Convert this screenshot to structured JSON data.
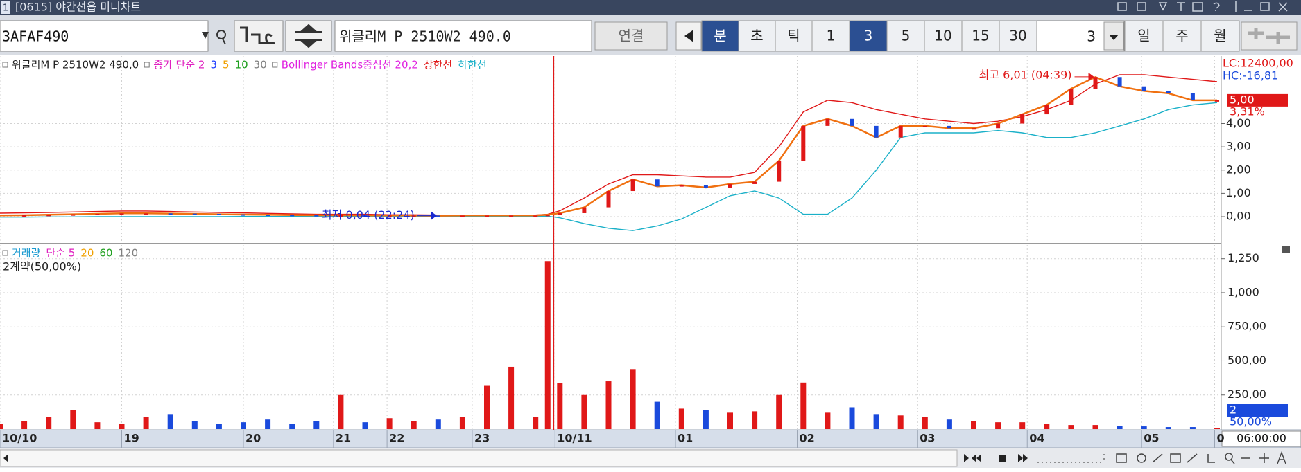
{
  "window": {
    "number": "1",
    "title": "[0615] 야간선옵 미니차트"
  },
  "toolbar": {
    "code": "3AFAF490",
    "name": "위클리M P 2510W2 490.0",
    "connect": "연결",
    "units": [
      "분",
      "초",
      "틱"
    ],
    "unit_selected": 0,
    "intervals": [
      "1",
      "3",
      "5",
      "10",
      "15",
      "30"
    ],
    "interval_selected": 1,
    "count": "3",
    "periods": [
      "일",
      "주",
      "월"
    ]
  },
  "chart_data": [
    {
      "type": "line",
      "x": [
        0,
        2,
        4,
        6,
        8,
        10,
        12,
        14,
        16,
        18,
        20,
        22,
        24,
        26,
        28,
        30,
        32,
        34,
        36,
        38,
        40,
        42,
        44,
        45,
        46,
        48,
        50,
        52,
        54,
        56,
        58,
        60,
        62,
        64,
        66,
        68,
        70,
        72,
        74,
        76,
        78,
        80,
        82,
        84,
        86,
        88,
        90,
        92,
        94,
        96,
        98,
        100
      ],
      "xlim": [
        0,
        100
      ],
      "ylim": [
        -1.1,
        6.9
      ],
      "yticks": [
        {
          "value": 0,
          "label": "0,00"
        },
        {
          "value": 1,
          "label": "1,00"
        },
        {
          "value": 2,
          "label": "2,00"
        },
        {
          "value": 3,
          "label": "3,00"
        },
        {
          "value": 4,
          "label": "4,00"
        }
      ],
      "grid": true,
      "crosshair_x": 45.5,
      "series": [
        {
          "name": "위클리M P 2510W2 490,0",
          "color": "#f07010",
          "values": [
            0.05,
            0.06,
            0.08,
            0.1,
            0.12,
            0.14,
            0.14,
            0.13,
            0.12,
            0.1,
            0.09,
            0.08,
            0.07,
            0.06,
            0.06,
            0.05,
            0.05,
            0.05,
            0.04,
            0.05,
            0.05,
            0.05,
            0.05,
            0.08,
            0.15,
            0.4,
            1.1,
            1.6,
            1.3,
            1.35,
            1.25,
            1.4,
            1.5,
            2.4,
            3.9,
            4.2,
            3.9,
            3.4,
            3.9,
            3.9,
            3.8,
            3.8,
            4.0,
            4.4,
            4.8,
            5.5,
            6.0,
            5.6,
            5.4,
            5.3,
            5.0,
            5.0
          ]
        },
        {
          "name": "상한선",
          "color": "#e01818",
          "values": [
            0.15,
            0.16,
            0.18,
            0.2,
            0.22,
            0.24,
            0.24,
            0.22,
            0.2,
            0.18,
            0.16,
            0.14,
            0.12,
            0.1,
            0.1,
            0.1,
            0.08,
            0.08,
            0.07,
            0.07,
            0.07,
            0.07,
            0.07,
            0.1,
            0.25,
            0.8,
            1.4,
            1.8,
            1.8,
            1.75,
            1.7,
            1.7,
            1.9,
            3.0,
            4.5,
            5.0,
            4.9,
            4.6,
            4.4,
            4.2,
            4.1,
            4.0,
            4.1,
            4.3,
            4.6,
            5.0,
            5.7,
            6.1,
            6.1,
            6.0,
            5.9,
            5.8
          ]
        },
        {
          "name": "하한선",
          "color": "#1ab0c8",
          "values": [
            -0.02,
            -0.02,
            -0.01,
            -0.01,
            0,
            0,
            0,
            0,
            0,
            0,
            0.01,
            0.01,
            0.01,
            0.01,
            0.02,
            0.02,
            0.02,
            0.02,
            0.02,
            0.02,
            0.02,
            0.02,
            0.02,
            0.02,
            -0.05,
            -0.3,
            -0.5,
            -0.6,
            -0.4,
            -0.1,
            0.4,
            0.9,
            1.1,
            0.8,
            0.1,
            0.1,
            0.8,
            2.0,
            3.4,
            3.6,
            3.6,
            3.6,
            3.7,
            3.6,
            3.4,
            3.4,
            3.6,
            3.9,
            4.2,
            4.6,
            4.8,
            4.9
          ]
        }
      ],
      "legend_items": [
        {
          "label": "종가 단순 2",
          "color": "#e020c0"
        },
        {
          "label": "3",
          "color": "#2040ff"
        },
        {
          "label": "5",
          "color": "#f0a000"
        },
        {
          "label": "10",
          "color": "#20a020"
        },
        {
          "label": "30",
          "color": "#808080"
        },
        {
          "label": "Bollinger Bands중심선 20,2",
          "color": "#e020e0"
        }
      ],
      "up_color": "#e01818",
      "down_color": "#1a4adc",
      "annotations": [
        {
          "text": "최고 6,01 (04:39)",
          "x": 90,
          "y": 6.01,
          "color": "#e01818"
        },
        {
          "text": "최저 0,04 (22:24)",
          "x": 36,
          "y": 0.04,
          "color": "#1a2ad0"
        }
      ],
      "lc_label": "LC:12400,00",
      "hc_label": "HC:-16,81",
      "last": {
        "value": 5,
        "label": "5,00"
      },
      "change_label": "3,31%"
    },
    {
      "type": "bar",
      "x": [
        0,
        2,
        4,
        6,
        8,
        10,
        12,
        14,
        16,
        18,
        20,
        22,
        24,
        26,
        28,
        30,
        32,
        34,
        36,
        38,
        40,
        42,
        44,
        45,
        46,
        48,
        50,
        52,
        54,
        56,
        58,
        60,
        62,
        64,
        66,
        68,
        70,
        72,
        74,
        76,
        78,
        80,
        82,
        84,
        86,
        88,
        90,
        92,
        94,
        96,
        98,
        100
      ],
      "xlim": [
        0,
        100
      ],
      "xticks": [
        {
          "value": 0,
          "label": "10/10"
        },
        {
          "value": 10,
          "label": "19"
        },
        {
          "value": 20,
          "label": "20"
        },
        {
          "value": 27.4,
          "label": "21"
        },
        {
          "value": 31.8,
          "label": "22"
        },
        {
          "value": 38.8,
          "label": "23"
        },
        {
          "value": 45.6,
          "label": "10/11"
        },
        {
          "value": 55.5,
          "label": "01"
        },
        {
          "value": 65.5,
          "label": "02"
        },
        {
          "value": 75.4,
          "label": "03"
        },
        {
          "value": 84.4,
          "label": "04"
        },
        {
          "value": 93.8,
          "label": "05"
        },
        {
          "value": 99.8,
          "label": "0"
        }
      ],
      "ylim": [
        0,
        1350
      ],
      "yticks": [
        {
          "value": 250,
          "label": "250,00"
        },
        {
          "value": 500,
          "label": "500,00"
        },
        {
          "value": 750,
          "label": "750,00"
        },
        {
          "value": 1000,
          "label": "1,000"
        },
        {
          "value": 1250,
          "label": "1,250"
        }
      ],
      "grid": true,
      "series": [
        {
          "name": "거래량",
          "color": "#1a9ad0",
          "values": [
            40,
            60,
            90,
            140,
            50,
            40,
            90,
            110,
            60,
            40,
            50,
            70,
            40,
            60,
            250,
            50,
            80,
            60,
            70,
            90,
            317,
            457,
            90,
            1232,
            335,
            250,
            350,
            440,
            200,
            150,
            140,
            120,
            130,
            250,
            341,
            120,
            160,
            110,
            100,
            90,
            70,
            60,
            50,
            50,
            40,
            30,
            30,
            25,
            20,
            15,
            15,
            10
          ]
        }
      ],
      "legend_items": [
        {
          "label": "단순 5",
          "color": "#e020c0"
        },
        {
          "label": "20",
          "color": "#f0a000"
        },
        {
          "label": "60",
          "color": "#20a020"
        },
        {
          "label": "120",
          "color": "#808080"
        }
      ],
      "contract_label": "2계약(50,00%)",
      "last_label": "2",
      "ratio_label": "50,00%",
      "time_label": "06:00:00"
    }
  ]
}
